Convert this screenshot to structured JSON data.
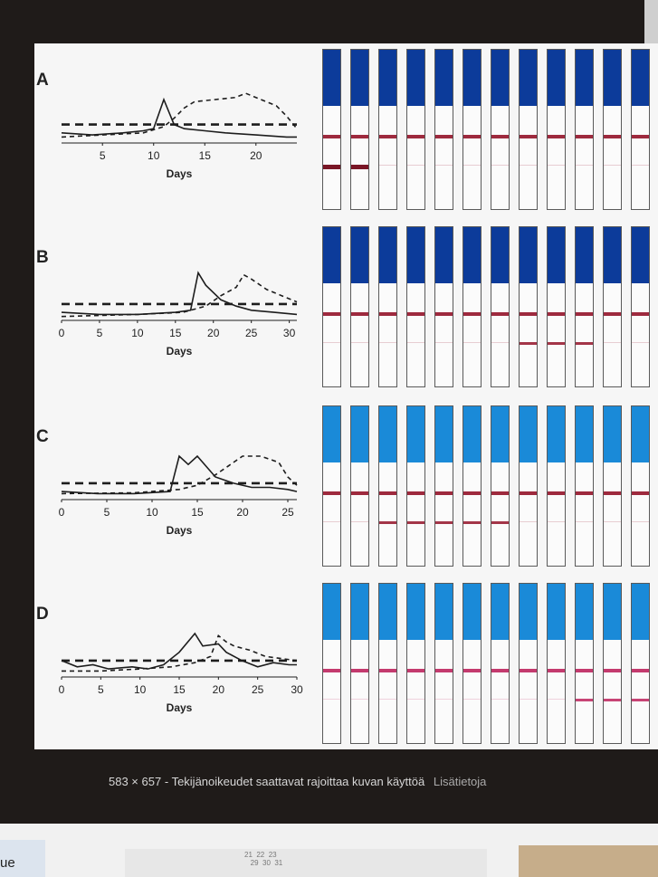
{
  "caption": {
    "dimensions": "583 × 657",
    "separator": "-",
    "rights": "Tekijänoikeudet saattavat rajoittaa kuvan käyttöä",
    "more_link": "Lisätietoja"
  },
  "bottom_strip": {
    "left_text": "ue",
    "mid_text": "21  22  23\n   29  30  31"
  },
  "colors": {
    "cap_dark": "#0c3b9a",
    "cap_light": "#1a8ad8",
    "line_red": "#9e2a3e",
    "line_pink": "#c43a6e"
  },
  "panels": [
    {
      "letter": "A",
      "xlabel": "Days"
    },
    {
      "letter": "B",
      "xlabel": "Days"
    },
    {
      "letter": "C",
      "xlabel": "Days"
    },
    {
      "letter": "D",
      "xlabel": "Days"
    }
  ],
  "chart_data": [
    {
      "type": "line",
      "xlabel": "Days",
      "xticks": [
        5,
        10,
        15,
        20
      ],
      "xlim": [
        1,
        24
      ],
      "series": [
        {
          "style": "solid",
          "x": [
            1,
            4,
            7,
            9,
            10,
            11,
            12,
            13,
            15,
            17,
            20,
            23,
            24
          ],
          "y": [
            0.2,
            0.15,
            0.2,
            0.25,
            0.3,
            1.0,
            0.4,
            0.3,
            0.25,
            0.2,
            0.15,
            0.1,
            0.1
          ]
        },
        {
          "style": "dashed",
          "x": [
            1,
            5,
            9,
            11,
            12,
            13,
            14,
            16,
            18,
            19,
            20,
            21,
            22,
            23,
            24
          ],
          "y": [
            0.1,
            0.15,
            0.2,
            0.35,
            0.55,
            0.8,
            0.95,
            1.0,
            1.05,
            1.15,
            1.05,
            0.95,
            0.85,
            0.6,
            0.3
          ]
        },
        {
          "style": "threshold",
          "x": [
            1,
            24
          ],
          "y": [
            0.4,
            0.4
          ]
        }
      ]
    },
    {
      "type": "line",
      "xlabel": "Days",
      "xticks": [
        0,
        5,
        10,
        15,
        20,
        25,
        30
      ],
      "xlim": [
        0,
        31
      ],
      "series": [
        {
          "style": "solid",
          "x": [
            0,
            5,
            10,
            15,
            17,
            18,
            19,
            21,
            23,
            25,
            28,
            31
          ],
          "y": [
            0.15,
            0.1,
            0.1,
            0.15,
            0.2,
            1.1,
            0.8,
            0.45,
            0.3,
            0.2,
            0.15,
            0.1
          ]
        },
        {
          "style": "dashed",
          "x": [
            0,
            10,
            16,
            19,
            21,
            23,
            24,
            25,
            27,
            29,
            31
          ],
          "y": [
            0.05,
            0.1,
            0.15,
            0.3,
            0.55,
            0.75,
            1.05,
            0.95,
            0.7,
            0.55,
            0.4
          ]
        },
        {
          "style": "threshold",
          "x": [
            0,
            31
          ],
          "y": [
            0.35,
            0.35
          ]
        }
      ]
    },
    {
      "type": "line",
      "xlabel": "Days",
      "xticks": [
        0,
        5,
        10,
        15,
        20,
        25
      ],
      "xlim": [
        0,
        26
      ],
      "series": [
        {
          "style": "solid",
          "x": [
            0,
            4,
            8,
            12,
            13,
            14,
            15,
            16,
            17,
            19,
            21,
            23,
            25,
            26
          ],
          "y": [
            0.15,
            0.1,
            0.1,
            0.15,
            1.0,
            0.8,
            1.0,
            0.75,
            0.5,
            0.35,
            0.25,
            0.25,
            0.2,
            0.15
          ]
        },
        {
          "style": "dashed",
          "x": [
            0,
            8,
            13,
            15,
            17,
            19,
            20,
            22,
            24,
            25,
            26
          ],
          "y": [
            0.1,
            0.12,
            0.2,
            0.3,
            0.55,
            0.85,
            1.0,
            1.0,
            0.85,
            0.5,
            0.3
          ]
        },
        {
          "style": "threshold",
          "x": [
            0,
            26
          ],
          "y": [
            0.35,
            0.35
          ]
        }
      ]
    },
    {
      "type": "line",
      "xlabel": "Days",
      "xticks": [
        0,
        5,
        10,
        15,
        20,
        25,
        30
      ],
      "xlim": [
        0,
        30
      ],
      "series": [
        {
          "style": "solid",
          "x": [
            0,
            2,
            4,
            6,
            9,
            11,
            13,
            15,
            17,
            18,
            20,
            21,
            23,
            25,
            27,
            29,
            30
          ],
          "y": [
            0.35,
            0.2,
            0.25,
            0.15,
            0.2,
            0.15,
            0.25,
            0.55,
            1.0,
            0.7,
            0.75,
            0.55,
            0.35,
            0.2,
            0.3,
            0.25,
            0.25
          ]
        },
        {
          "style": "dashed",
          "x": [
            0,
            5,
            10,
            14,
            17,
            19,
            20,
            21,
            22,
            24,
            26,
            28,
            30
          ],
          "y": [
            0.1,
            0.1,
            0.15,
            0.2,
            0.3,
            0.45,
            0.95,
            0.8,
            0.7,
            0.6,
            0.45,
            0.4,
            0.35
          ]
        },
        {
          "style": "threshold",
          "x": [
            0,
            30
          ],
          "y": [
            0.35,
            0.35
          ]
        }
      ]
    }
  ],
  "strips": [
    {
      "cap": "dark",
      "ctrl": "red",
      "test": [
        3,
        3,
        1,
        1,
        1,
        1,
        1,
        1,
        1,
        1,
        1,
        1
      ]
    },
    {
      "cap": "dark",
      "ctrl": "red",
      "test": [
        1,
        1,
        1,
        1,
        1,
        1,
        1,
        2,
        2,
        2,
        1,
        1
      ]
    },
    {
      "cap": "light",
      "ctrl": "red",
      "test": [
        1,
        1,
        2,
        2,
        2,
        2,
        2,
        1,
        1,
        1,
        1,
        1
      ]
    },
    {
      "cap": "light",
      "ctrl": "pink",
      "test": [
        1,
        1,
        1,
        1,
        1,
        1,
        1,
        1,
        1,
        2,
        2,
        2
      ]
    }
  ]
}
